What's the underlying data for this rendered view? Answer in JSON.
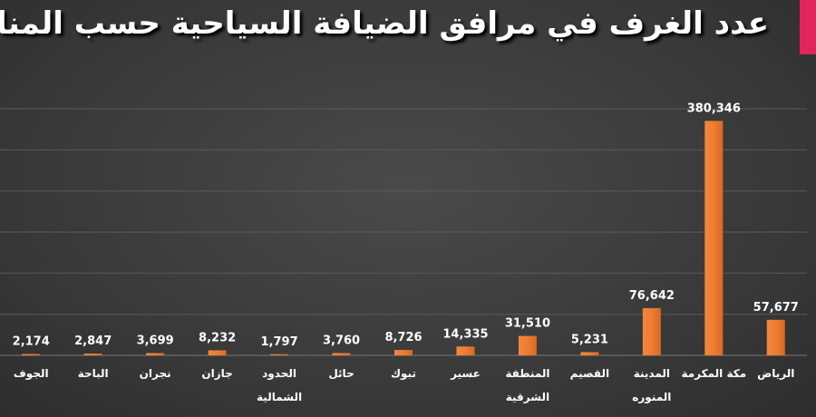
{
  "chart_data": {
    "type": "bar",
    "title": "عدد الغرف في مرافق الضيافة السياحية حسب المناطق",
    "categories": [
      "الجوف",
      "الباحة",
      "نجران",
      "جازان",
      "الحدود الشمالية",
      "حائل",
      "تبوك",
      "عسير",
      "المنطقة الشرقية",
      "القصيم",
      "المدينة المنوره",
      "مكة المكرمة",
      "الرياض"
    ],
    "values": [
      2174,
      2847,
      3699,
      8232,
      1797,
      3760,
      8726,
      14335,
      31510,
      5231,
      76642,
      380346,
      57677
    ],
    "value_labels": [
      "2,174",
      "2,847",
      "3,699",
      "8,232",
      "1,797",
      "3,760",
      "8,726",
      "14,335",
      "31,510",
      "5,231",
      "76,642",
      "380,346",
      "57,677"
    ],
    "color": "#ed7d31",
    "ylim": [
      0,
      400000
    ],
    "grid": true
  }
}
